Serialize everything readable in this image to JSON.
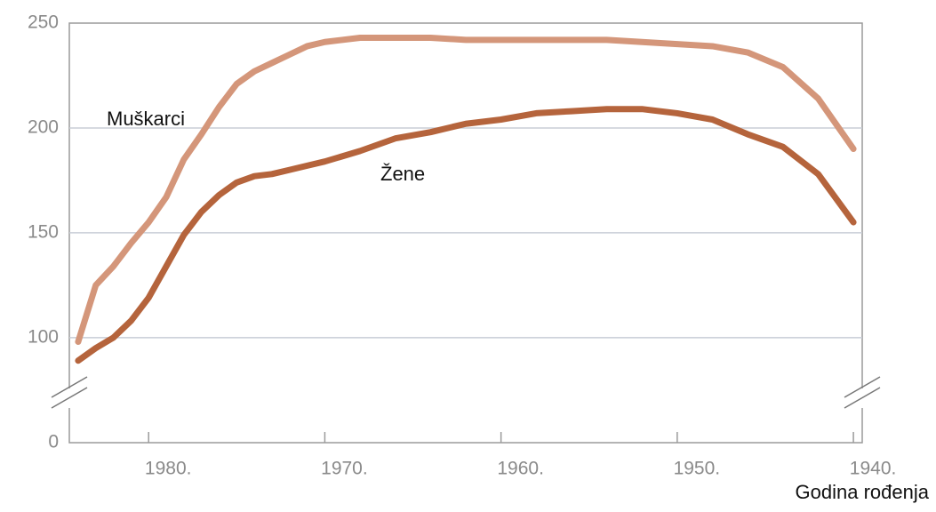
{
  "chart_data": {
    "type": "line",
    "x_label": "Godina rođenja",
    "x": [
      1984,
      1983,
      1982,
      1981,
      1980,
      1979,
      1978,
      1977,
      1976,
      1975,
      1974,
      1973,
      1972,
      1971,
      1970,
      1968,
      1966,
      1964,
      1962,
      1960,
      1958,
      1956,
      1954,
      1952,
      1950,
      1948,
      1946,
      1944,
      1942,
      1940
    ],
    "series": [
      {
        "name": "Muškarci",
        "color": "#d4967a",
        "values": [
          98,
          125,
          134,
          145,
          155,
          167,
          185,
          197,
          210,
          221,
          227,
          231,
          235,
          239,
          241,
          243,
          243,
          243,
          242,
          242,
          242,
          242,
          242,
          241,
          240,
          239,
          236,
          229,
          214,
          190
        ]
      },
      {
        "name": "Žene",
        "color": "#b5643c",
        "values": [
          89,
          95,
          100,
          108,
          119,
          134,
          149,
          160,
          168,
          174,
          177,
          178,
          180,
          182,
          184,
          189,
          195,
          198,
          202,
          204,
          207,
          208,
          209,
          209,
          207,
          204,
          197,
          191,
          178,
          155
        ]
      }
    ],
    "xlim": [
      1984.5,
      1939.5
    ],
    "xticks": [
      {
        "value": 1980,
        "label": "1980."
      },
      {
        "value": 1970,
        "label": "1970."
      },
      {
        "value": 1960,
        "label": "1960."
      },
      {
        "value": 1950,
        "label": "1950."
      },
      {
        "value": 1940,
        "label": "1940."
      }
    ],
    "ylim": [
      0,
      250
    ],
    "y_break": [
      0,
      80
    ],
    "yticks": [
      0,
      100,
      150,
      200,
      250
    ],
    "grid": true
  }
}
